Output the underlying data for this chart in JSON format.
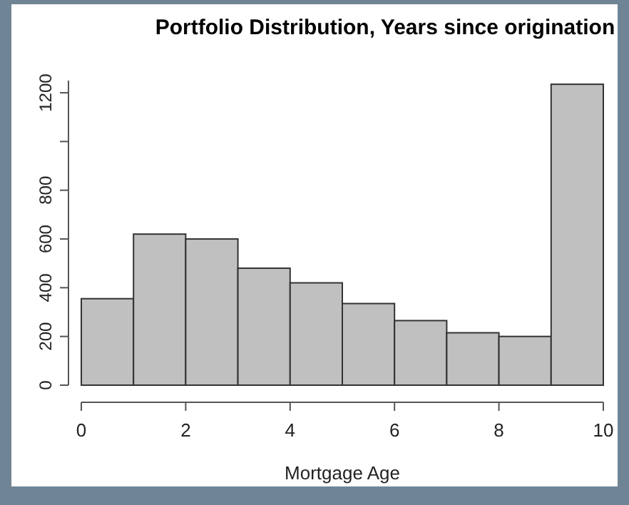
{
  "chart_data": {
    "type": "histogram",
    "title": "Portfolio Distribution, Years since origination",
    "xlabel": "Mortgage Age",
    "bins": [
      0,
      1,
      2,
      3,
      4,
      5,
      6,
      7,
      8,
      9,
      10
    ],
    "values": [
      355,
      620,
      600,
      480,
      420,
      335,
      265,
      215,
      200,
      1235
    ],
    "color": "#c0c0c0",
    "xlim": [
      0,
      10
    ],
    "xticks": [
      0,
      2,
      4,
      6,
      8,
      10
    ],
    "ylim": [
      0,
      1250
    ],
    "yticks": [
      0,
      200,
      400,
      600,
      800,
      {
        "value": 1000,
        "label": null
      },
      1200
    ],
    "grid": false
  }
}
